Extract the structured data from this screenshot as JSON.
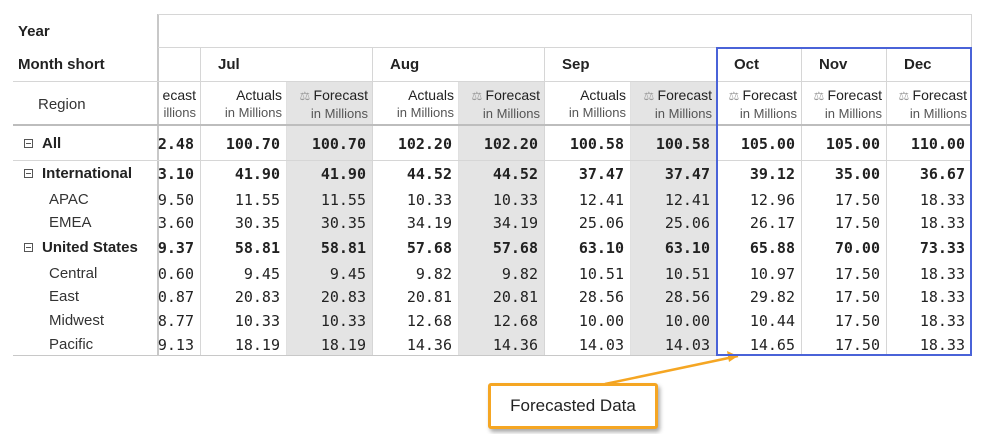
{
  "headers": {
    "year": "Year",
    "month_short": "Month short",
    "region": "Region",
    "months": [
      "Jul",
      "Aug",
      "Sep",
      "Oct",
      "Nov",
      "Dec"
    ],
    "partial_col_top": "ecast",
    "partial_col_bottom": "illions",
    "actuals": "Actuals",
    "forecast": "Forecast",
    "in_millions": "in Millions"
  },
  "rows": [
    {
      "label": "All",
      "level": 0,
      "bold": true,
      "expander": true,
      "partial": "2.48",
      "values": [
        "100.70",
        "100.70",
        "102.20",
        "102.20",
        "100.58",
        "100.58",
        "105.00",
        "105.00",
        "110.00"
      ]
    },
    {
      "label": "International",
      "level": 0,
      "bold": true,
      "expander": true,
      "partial": "3.10",
      "values": [
        "41.90",
        "41.90",
        "44.52",
        "44.52",
        "37.47",
        "37.47",
        "39.12",
        "35.00",
        "36.67"
      ]
    },
    {
      "label": "APAC",
      "level": 1,
      "bold": false,
      "expander": false,
      "partial": "9.50",
      "values": [
        "11.55",
        "11.55",
        "10.33",
        "10.33",
        "12.41",
        "12.41",
        "12.96",
        "17.50",
        "18.33"
      ]
    },
    {
      "label": "EMEA",
      "level": 1,
      "bold": false,
      "expander": false,
      "partial": "3.60",
      "values": [
        "30.35",
        "30.35",
        "34.19",
        "34.19",
        "25.06",
        "25.06",
        "26.17",
        "17.50",
        "18.33"
      ]
    },
    {
      "label": "United States",
      "level": 0,
      "bold": true,
      "expander": true,
      "partial": "9.37",
      "values": [
        "58.81",
        "58.81",
        "57.68",
        "57.68",
        "63.10",
        "63.10",
        "65.88",
        "70.00",
        "73.33"
      ]
    },
    {
      "label": "Central",
      "level": 1,
      "bold": false,
      "expander": false,
      "partial": "0.60",
      "values": [
        "9.45",
        "9.45",
        "9.82",
        "9.82",
        "10.51",
        "10.51",
        "10.97",
        "17.50",
        "18.33"
      ]
    },
    {
      "label": "East",
      "level": 1,
      "bold": false,
      "expander": false,
      "partial": "0.87",
      "values": [
        "20.83",
        "20.83",
        "20.81",
        "20.81",
        "28.56",
        "28.56",
        "29.82",
        "17.50",
        "18.33"
      ]
    },
    {
      "label": "Midwest",
      "level": 1,
      "bold": false,
      "expander": false,
      "partial": "8.77",
      "values": [
        "10.33",
        "10.33",
        "12.68",
        "12.68",
        "10.00",
        "10.00",
        "10.44",
        "17.50",
        "18.33"
      ]
    },
    {
      "label": "Pacific",
      "level": 1,
      "bold": false,
      "expander": false,
      "partial": "9.13",
      "values": [
        "18.19",
        "18.19",
        "14.36",
        "14.36",
        "14.03",
        "14.03",
        "14.65",
        "17.50",
        "18.33"
      ]
    }
  ],
  "callout": {
    "text": "Forecasted Data",
    "border_color": "#f5a623",
    "highlight_color": "#4a63d8"
  },
  "colors": {
    "forecast_shade": "#e4e4e4",
    "grid": "#d6d6d6"
  }
}
